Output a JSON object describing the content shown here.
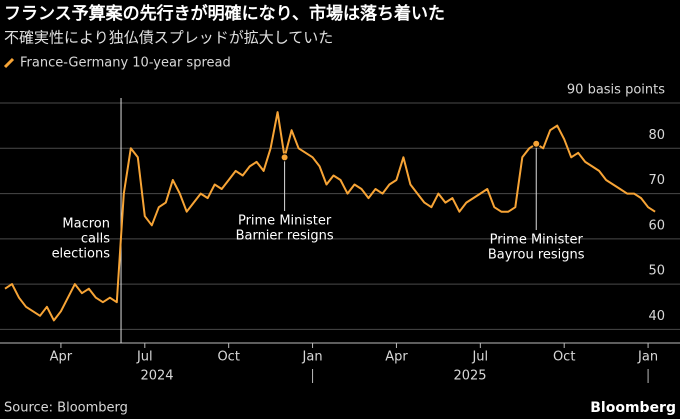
{
  "chart_data": {
    "type": "line",
    "title": "フランス予算案の先行きが明確になり、市場は落ち着いた",
    "subtitle": "不確実性により独仏債スプレッドが拡大していた",
    "source": "Source: Bloomberg",
    "logo": "Bloomberg",
    "legend": "top-left",
    "grid": true,
    "categories": [
      null,
      null,
      null,
      null,
      null,
      null,
      null,
      null,
      "Apr",
      null,
      null,
      null,
      null,
      null,
      null,
      null,
      null,
      null,
      null,
      null,
      "Jul",
      null,
      null,
      null,
      null,
      null,
      null,
      null,
      null,
      null,
      null,
      null,
      "Oct",
      null,
      null,
      null,
      null,
      null,
      null,
      null,
      null,
      null,
      null,
      null,
      "Jan",
      null,
      null,
      null,
      null,
      null,
      null,
      null,
      null,
      null,
      null,
      null,
      "Apr",
      null,
      null,
      null,
      null,
      null,
      null,
      null,
      null,
      null,
      null,
      null,
      "Jul",
      null,
      null,
      null,
      null,
      null,
      null,
      null,
      null,
      null,
      null,
      null,
      "Oct",
      null,
      null,
      null,
      null,
      null,
      null,
      null,
      null,
      null,
      null,
      null,
      "Jan",
      null
    ],
    "year_labels": [
      "2024",
      "2025"
    ],
    "series": [
      {
        "name": "France-Germany 10-year spread",
        "color": "#f7a436",
        "values": [
          49,
          50,
          47,
          45,
          44,
          43,
          45,
          42,
          44,
          47,
          50,
          48,
          49,
          47,
          46,
          47,
          46,
          70,
          80,
          78,
          65,
          63,
          67,
          68,
          73,
          70,
          66,
          68,
          70,
          69,
          72,
          71,
          73,
          75,
          74,
          76,
          77,
          75,
          80,
          88,
          78,
          84,
          80,
          79,
          78,
          76,
          72,
          74,
          73,
          70,
          72,
          71,
          69,
          71,
          70,
          72,
          73,
          78,
          72,
          70,
          68,
          67,
          70,
          68,
          69,
          66,
          68,
          69,
          70,
          71,
          67,
          66,
          66,
          67,
          78,
          80,
          81,
          80,
          84,
          85,
          82,
          78,
          79,
          77,
          76,
          75,
          73,
          72,
          71,
          70,
          70,
          69,
          67,
          66
        ]
      }
    ],
    "ylim": [
      37,
      90
    ],
    "yticks": [
      40,
      50,
      60,
      70,
      80,
      {
        "value": 90,
        "label": "90 basis points"
      }
    ],
    "annotations": [
      {
        "text": [
          "Macron",
          "calls",
          "elections"
        ]
      },
      {
        "text": [
          "Prime Minister",
          "Barnier resigns"
        ]
      },
      {
        "text": [
          "Prime Minister",
          "Bayrou resigns"
        ]
      }
    ]
  }
}
